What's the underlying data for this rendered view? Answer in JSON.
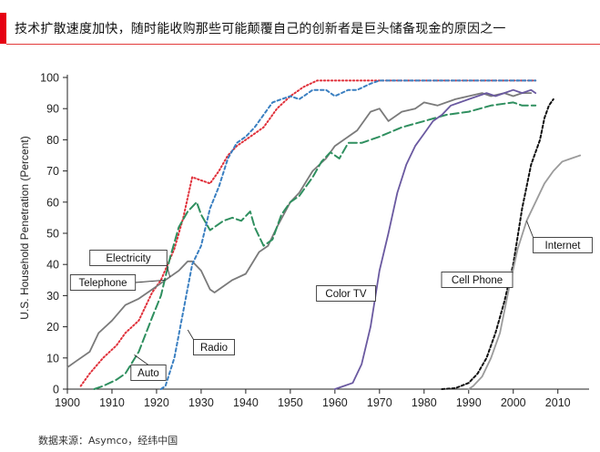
{
  "title": "技术扩散速度加快，随时能收购那些可能颠覆自己的创新者是巨头储备现金的原因之一",
  "source": "数据来源：Asymco，经纬中国",
  "colors": {
    "accent": "#e60012"
  },
  "chart_data": {
    "type": "line",
    "title": "技术扩散速度加快，随时能收购那些可能颠覆自己的创新者是巨头储备现金的原因之一",
    "xlabel": "",
    "ylabel": "U.S. Household Penetration (Percent)",
    "xlim": [
      1900,
      2017
    ],
    "ylim": [
      0,
      100
    ],
    "x_ticks": [
      "1900",
      "1910",
      "1920",
      "1930",
      "1940",
      "1950",
      "1960",
      "1970",
      "1980",
      "1990",
      "2000",
      "2010"
    ],
    "y_ticks": [
      "0",
      "10",
      "20",
      "30",
      "40",
      "50",
      "60",
      "70",
      "80",
      "90",
      "100"
    ],
    "grid": false,
    "legend": "inline labels",
    "series": [
      {
        "name": "Electricity",
        "color": "#e0303a",
        "dash": "1.5,2.5",
        "points": [
          [
            1903,
            1
          ],
          [
            1905,
            5
          ],
          [
            1908,
            10
          ],
          [
            1911,
            14
          ],
          [
            1913,
            18
          ],
          [
            1916,
            22
          ],
          [
            1919,
            31
          ],
          [
            1921,
            35
          ],
          [
            1924,
            45
          ],
          [
            1926,
            55
          ],
          [
            1928,
            68
          ],
          [
            1930,
            67
          ],
          [
            1932,
            66
          ],
          [
            1934,
            70
          ],
          [
            1936,
            75
          ],
          [
            1938,
            78
          ],
          [
            1940,
            80
          ],
          [
            1942,
            82
          ],
          [
            1944,
            84
          ],
          [
            1945,
            86
          ],
          [
            1947,
            90
          ],
          [
            1950,
            94
          ],
          [
            1953,
            97
          ],
          [
            1956,
            99
          ],
          [
            1970,
            99
          ],
          [
            2005,
            99
          ]
        ]
      },
      {
        "name": "Telephone",
        "color": "#7a7a7a",
        "dash": "",
        "points": [
          [
            1900,
            7
          ],
          [
            1902,
            9
          ],
          [
            1905,
            12
          ],
          [
            1907,
            18
          ],
          [
            1910,
            22
          ],
          [
            1913,
            27
          ],
          [
            1916,
            29
          ],
          [
            1919,
            32
          ],
          [
            1922,
            35
          ],
          [
            1925,
            38
          ],
          [
            1927,
            41
          ],
          [
            1928,
            41
          ],
          [
            1930,
            38
          ],
          [
            1932,
            32
          ],
          [
            1933,
            31
          ],
          [
            1935,
            33
          ],
          [
            1937,
            35
          ],
          [
            1940,
            37
          ],
          [
            1943,
            44
          ],
          [
            1945,
            46
          ],
          [
            1947,
            52
          ],
          [
            1950,
            60
          ],
          [
            1952,
            63
          ],
          [
            1955,
            70
          ],
          [
            1958,
            74
          ],
          [
            1960,
            78
          ],
          [
            1962,
            80
          ],
          [
            1965,
            83
          ],
          [
            1968,
            89
          ],
          [
            1970,
            90
          ],
          [
            1972,
            86
          ],
          [
            1975,
            89
          ],
          [
            1978,
            90
          ],
          [
            1980,
            92
          ],
          [
            1983,
            91
          ],
          [
            1987,
            93
          ],
          [
            1990,
            94
          ],
          [
            1993,
            95
          ],
          [
            1995,
            94
          ],
          [
            1998,
            95
          ],
          [
            2000,
            94
          ],
          [
            2002,
            95
          ],
          [
            2004,
            95
          ]
        ]
      },
      {
        "name": "Auto",
        "color": "#2f8f5f",
        "dash": "9,4",
        "points": [
          [
            1906,
            0
          ],
          [
            1908,
            1
          ],
          [
            1911,
            3
          ],
          [
            1913,
            5
          ],
          [
            1916,
            12
          ],
          [
            1919,
            23
          ],
          [
            1921,
            30
          ],
          [
            1923,
            42
          ],
          [
            1925,
            52
          ],
          [
            1927,
            57
          ],
          [
            1929,
            60
          ],
          [
            1930,
            56
          ],
          [
            1932,
            51
          ],
          [
            1935,
            54
          ],
          [
            1937,
            55
          ],
          [
            1939,
            54
          ],
          [
            1941,
            57
          ],
          [
            1942,
            52
          ],
          [
            1944,
            46
          ],
          [
            1946,
            48
          ],
          [
            1948,
            56
          ],
          [
            1950,
            60
          ],
          [
            1952,
            62
          ],
          [
            1955,
            68
          ],
          [
            1957,
            73
          ],
          [
            1959,
            76
          ],
          [
            1961,
            74
          ],
          [
            1963,
            79
          ],
          [
            1966,
            79
          ],
          [
            1970,
            81
          ],
          [
            1975,
            84
          ],
          [
            1980,
            86
          ],
          [
            1985,
            88
          ],
          [
            1990,
            89
          ],
          [
            1995,
            91
          ],
          [
            2000,
            92
          ],
          [
            2002,
            91
          ],
          [
            2005,
            91
          ]
        ]
      },
      {
        "name": "Radio",
        "color": "#3a7fc1",
        "dash": "3.5,3",
        "points": [
          [
            1921,
            0
          ],
          [
            1922,
            1
          ],
          [
            1924,
            10
          ],
          [
            1926,
            25
          ],
          [
            1928,
            40
          ],
          [
            1930,
            46
          ],
          [
            1932,
            58
          ],
          [
            1934,
            65
          ],
          [
            1936,
            74
          ],
          [
            1938,
            79
          ],
          [
            1940,
            81
          ],
          [
            1942,
            84
          ],
          [
            1944,
            88
          ],
          [
            1946,
            92
          ],
          [
            1948,
            93
          ],
          [
            1950,
            94
          ],
          [
            1952,
            93
          ],
          [
            1955,
            96
          ],
          [
            1958,
            96
          ],
          [
            1960,
            94
          ],
          [
            1963,
            96
          ],
          [
            1965,
            96
          ],
          [
            1968,
            98
          ],
          [
            1970,
            99
          ],
          [
            1980,
            99
          ],
          [
            2005,
            99
          ]
        ]
      },
      {
        "name": "Color TV",
        "color": "#6a59a0",
        "dash": "",
        "points": [
          [
            1960,
            0
          ],
          [
            1962,
            1
          ],
          [
            1964,
            2
          ],
          [
            1966,
            8
          ],
          [
            1968,
            20
          ],
          [
            1970,
            38
          ],
          [
            1972,
            50
          ],
          [
            1974,
            63
          ],
          [
            1976,
            72
          ],
          [
            1978,
            78
          ],
          [
            1980,
            82
          ],
          [
            1982,
            86
          ],
          [
            1984,
            88
          ],
          [
            1986,
            91
          ],
          [
            1988,
            92
          ],
          [
            1990,
            93
          ],
          [
            1992,
            94
          ],
          [
            1994,
            95
          ],
          [
            1996,
            94
          ],
          [
            1998,
            95
          ],
          [
            2000,
            96
          ],
          [
            2002,
            95
          ],
          [
            2004,
            96
          ],
          [
            2005,
            95
          ]
        ]
      },
      {
        "name": "Cell Phone",
        "color": "#111111",
        "dash": "3,2.5",
        "points": [
          [
            1984,
            0
          ],
          [
            1987,
            0.3
          ],
          [
            1990,
            2
          ],
          [
            1992,
            5
          ],
          [
            1994,
            10
          ],
          [
            1996,
            18
          ],
          [
            1998,
            28
          ],
          [
            2000,
            40
          ],
          [
            2002,
            58
          ],
          [
            2004,
            72
          ],
          [
            2006,
            80
          ],
          [
            2007,
            87
          ],
          [
            2008,
            91
          ],
          [
            2009,
            93
          ]
        ]
      },
      {
        "name": "Internet",
        "color": "#9b9b9b",
        "dash": "",
        "points": [
          [
            1990,
            0
          ],
          [
            1991,
            1
          ],
          [
            1993,
            4
          ],
          [
            1995,
            10
          ],
          [
            1997,
            18
          ],
          [
            1999,
            32
          ],
          [
            2001,
            45
          ],
          [
            2003,
            54
          ],
          [
            2005,
            60
          ],
          [
            2007,
            66
          ],
          [
            2009,
            70
          ],
          [
            2011,
            73
          ],
          [
            2013,
            74
          ],
          [
            2015,
            75
          ]
        ]
      }
    ],
    "labels": [
      "Electricity",
      "Telephone",
      "Auto",
      "Radio",
      "Color TV",
      "Cell Phone",
      "Internet"
    ]
  }
}
